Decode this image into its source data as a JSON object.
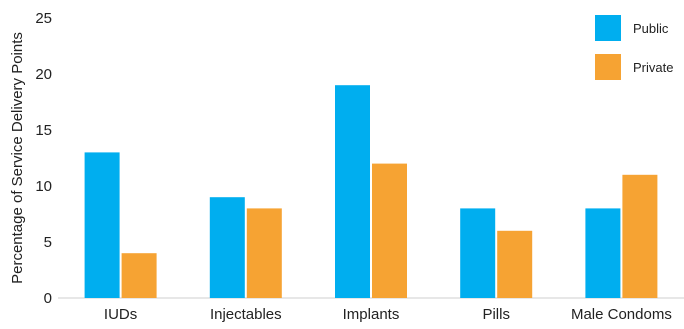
{
  "chart_data": {
    "type": "bar",
    "title": "",
    "xlabel": "",
    "ylabel": "Percentage of Service Delivery Points",
    "ylim": [
      0,
      25
    ],
    "yticks": [
      0,
      5,
      10,
      15,
      20,
      25
    ],
    "grid": false,
    "legend_position": "top-right",
    "categories": [
      "IUDs",
      "Injectables",
      "Implants",
      "Pills",
      "Male Condoms"
    ],
    "series": [
      {
        "name": "Public",
        "color": "#00aeef",
        "values": [
          13,
          9,
          19,
          8,
          8
        ]
      },
      {
        "name": "Private",
        "color": "#f6a333",
        "values": [
          4,
          8,
          12,
          6,
          11
        ]
      }
    ]
  }
}
